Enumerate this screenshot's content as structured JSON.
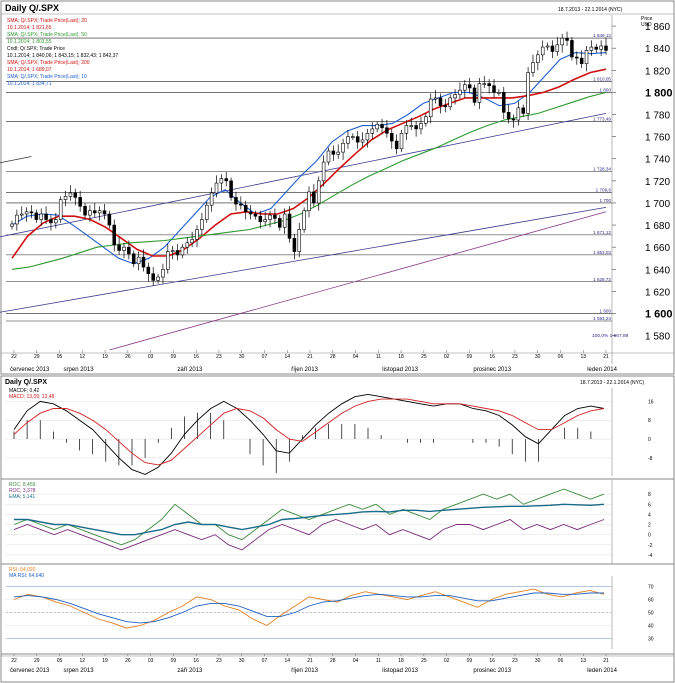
{
  "panel_title": "Daily Q/.SPX",
  "panel_date_range": "18.7.2013 - 22.1.2014 (NYC)",
  "osc_date_range": "18.7.2013 - 22.1.2014 (NYC)",
  "price_unit": "Price\nUSD",
  "value_unit": "Value\nUSD",
  "colors": {
    "candle": "#000000",
    "sma20": "#1f5fd0",
    "sma50": "#2e9a2e",
    "sma200": "#d01010",
    "trend_blue": "#3a3a8c",
    "trend_purple": "#8a3a8a",
    "macd": "#000000",
    "macd_signal": "#d02020",
    "roc": "#3a8a3a",
    "roc2": "#7a2a7a",
    "ema": "#1a6a8a",
    "rsi": "#e08020",
    "rsi_ma": "#2060c0"
  },
  "legend_main": {
    "sma20": "SMA; Q/.SPX; Trade Price(Last); 20",
    "sma20_val": "10.1.2014; 1 821,65",
    "sma50": "SMA; Q/.SPX; Trade Price(Last); 50",
    "sma50_val": "10.1.2014; 1 803,55",
    "ohlc": "Cndl; Q/.SPX; Trade Price",
    "ohlc_val": "10.1.2014; 1 840,06; 1 843,15; 1 832,43; 1 842,37",
    "sma200": "SMA; Q/.SPX; Trade Price(Last); 200",
    "sma200_val": "10.1.2014; 1 689,07",
    "sma10": "SMA; Q/.SPX; Trade Price(Last); 10",
    "sma10_val": "10.1.2014; 1 834,71"
  },
  "legend_macd": {
    "macd": "MACDF; 0,42",
    "signal": "MACD; 13,09; 13,48"
  },
  "legend_roc": {
    "roc": "ROC; 8,459",
    "roc2": "ROC; 3,378",
    "ema": "EMA; 5,141"
  },
  "legend_rsi": {
    "rsi": "RSI; 64,020",
    "rsi_ma": "MA RSI; 64,640"
  },
  "hlines": [
    {
      "value": 1849.12,
      "label": "1 849,12"
    },
    {
      "value": 1810.05,
      "label": "1 810,05"
    },
    {
      "value": 1800,
      "label": "1 800"
    },
    {
      "value": 1773.49,
      "label": "1 773,49"
    },
    {
      "value": 1728.34,
      "label": "1 728,34"
    },
    {
      "value": 1709.6,
      "label": "1 709,6"
    },
    {
      "value": 1700,
      "label": "1 700"
    },
    {
      "value": 1671.12,
      "label": "1 671,12"
    },
    {
      "value": 1653.03,
      "label": "1 653,03"
    },
    {
      "value": 1628.72,
      "label": "1 628,72"
    },
    {
      "value": 1600,
      "label": "1 600"
    },
    {
      "value": 1593.24,
      "label": "1 593,24"
    }
  ],
  "fib_label": "100,0%  1 567,89",
  "price_ticks": [
    "1 860",
    "1 840",
    "1 820",
    "1 800",
    "1 780",
    "1 760",
    "1 740",
    "1 720",
    "1 700",
    "1 680",
    "1 660",
    "1 640",
    "1 620",
    "1 600",
    "1 580"
  ],
  "macd_ticks": [
    "16",
    "8",
    "0",
    "-8"
  ],
  "roc_ticks": [
    "8",
    "6",
    "4",
    "2",
    "0",
    "-2",
    "-4"
  ],
  "rsi_ticks": [
    "70",
    "60",
    "50",
    "40",
    "30"
  ],
  "date_ticks": [
    "22",
    "29",
    "05",
    "12",
    "19",
    "26",
    "03",
    "09",
    "16",
    "23",
    "30",
    "07",
    "14",
    "21",
    "28",
    "04",
    "11",
    "18",
    "25",
    "02",
    "09",
    "16",
    "23",
    "30",
    "06",
    "13",
    "21"
  ],
  "month_labels": [
    "červenec 2013",
    "srpen 2013",
    "září 2013",
    "říjen 2013",
    "listopad 2013",
    "prosinec 2013",
    "leden 2014"
  ],
  "chart_data": [
    {
      "type": "candlestick",
      "title": "Daily Q/.SPX",
      "ylabel": "Price USD",
      "ylim": [
        1567,
        1870
      ],
      "x_range": [
        "2013-07-18",
        "2014-01-22"
      ],
      "series": [
        {
          "name": "Q/.SPX close",
          "values": [
            1681,
            1689,
            1690,
            1692,
            1691,
            1685,
            1690,
            1685,
            1682,
            1685,
            1703,
            1706,
            1709,
            1705,
            1697,
            1689,
            1693,
            1691,
            1693,
            1690,
            1680,
            1662,
            1657,
            1660,
            1654,
            1645,
            1651,
            1642,
            1636,
            1630,
            1633,
            1640,
            1656,
            1657,
            1653,
            1660,
            1664,
            1667,
            1676,
            1685,
            1698,
            1709,
            1718,
            1722,
            1720,
            1705,
            1699,
            1698,
            1692,
            1690,
            1688,
            1683,
            1685,
            1689,
            1686,
            1678,
            1690,
            1668,
            1656,
            1676,
            1693,
            1710,
            1700,
            1720,
            1737,
            1747,
            1744,
            1746,
            1754,
            1760,
            1760,
            1755,
            1757,
            1763,
            1767,
            1771,
            1768,
            1763,
            1756,
            1749,
            1763,
            1770,
            1770,
            1767,
            1772,
            1778,
            1794,
            1795,
            1788,
            1787,
            1795,
            1798,
            1802,
            1807,
            1804,
            1791,
            1808,
            1808,
            1806,
            1800,
            1800,
            1782,
            1776,
            1775,
            1786,
            1781,
            1818,
            1827,
            1834,
            1841,
            1842,
            1837,
            1843,
            1849,
            1847,
            1832,
            1831,
            1826,
            1838,
            1841,
            1839,
            1842,
            1838
          ]
        },
        {
          "name": "SMA 10",
          "values": [
            1680,
            1688,
            1690,
            1689,
            1680,
            1670,
            1660,
            1650,
            1645,
            1650,
            1660,
            1675,
            1690,
            1705,
            1712,
            1700,
            1690,
            1695,
            1710,
            1725,
            1738,
            1755,
            1765,
            1770,
            1770,
            1772,
            1780,
            1790,
            1795,
            1800,
            1800,
            1795,
            1788,
            1790,
            1800,
            1815,
            1830,
            1836,
            1835,
            1836
          ]
        },
        {
          "name": "SMA 20",
          "values": [
            1650,
            1670,
            1682,
            1688,
            1688,
            1685,
            1678,
            1668,
            1658,
            1652,
            1652,
            1658,
            1668,
            1680,
            1690,
            1692,
            1690,
            1690,
            1695,
            1705,
            1718,
            1732,
            1745,
            1757,
            1766,
            1772,
            1778,
            1785,
            1790,
            1795,
            1795,
            1795,
            1795,
            1797,
            1800,
            1805,
            1812,
            1818,
            1821
          ]
        },
        {
          "name": "SMA 50",
          "values": [
            1640,
            1642,
            1646,
            1650,
            1655,
            1660,
            1662,
            1664,
            1665,
            1666,
            1668,
            1670,
            1672,
            1674,
            1676,
            1680,
            1684,
            1690,
            1698,
            1707,
            1716,
            1724,
            1731,
            1738,
            1744,
            1750,
            1757,
            1764,
            1770,
            1775,
            1778,
            1781,
            1786,
            1791,
            1796,
            1800
          ]
        }
      ]
    },
    {
      "type": "line",
      "title": "MACD",
      "series": [
        {
          "name": "MACDF",
          "values": [
            4,
            12,
            16,
            15,
            12,
            8,
            4,
            -2,
            -8,
            -13,
            -15,
            -12,
            -6,
            2,
            8,
            13,
            16,
            13,
            8,
            2,
            -5,
            -6,
            0,
            6,
            11,
            15,
            18,
            19,
            18,
            17,
            16,
            15,
            14,
            15,
            15,
            13,
            12,
            10,
            6,
            1,
            -2,
            4,
            10,
            13,
            14,
            13
          ]
        },
        {
          "name": "MACD signal",
          "values": [
            2,
            7,
            11,
            13,
            13,
            11,
            8,
            4,
            -1,
            -6,
            -10,
            -11,
            -9,
            -4,
            1,
            6,
            11,
            13,
            12,
            9,
            4,
            0,
            -1,
            3,
            7,
            11,
            14,
            16,
            17,
            17,
            17,
            16,
            15,
            15,
            15,
            14,
            13,
            12,
            10,
            7,
            4,
            4,
            7,
            10,
            12,
            13
          ]
        }
      ]
    },
    {
      "type": "line",
      "title": "ROC",
      "series": [
        {
          "name": "ROC 8,459",
          "values": [
            2,
            3,
            2,
            1,
            2,
            1,
            0,
            -1,
            -2,
            -1,
            1,
            3,
            6,
            4,
            2,
            2,
            0,
            -1,
            1,
            3,
            5,
            4,
            3,
            4,
            5,
            6,
            5,
            6,
            4,
            5,
            4,
            3,
            5,
            6,
            7,
            8,
            7,
            8,
            6,
            7,
            8,
            9,
            8,
            7,
            8
          ]
        },
        {
          "name": "ROC 3,378",
          "values": [
            1,
            2,
            1,
            0,
            1,
            0,
            -1,
            -2,
            -3,
            -2,
            -1,
            0,
            1,
            0,
            -1,
            0,
            -2,
            -3,
            -1,
            1,
            2,
            1,
            0,
            2,
            3,
            2,
            1,
            2,
            0,
            1,
            0,
            -1,
            1,
            2,
            2,
            1,
            2,
            3,
            1,
            2,
            1,
            2,
            1,
            2,
            3
          ]
        },
        {
          "name": "EMA",
          "values": [
            3,
            3,
            2.5,
            2,
            2,
            1.5,
            1,
            0.5,
            0,
            0,
            0.5,
            1,
            2,
            2.5,
            2,
            2,
            1.5,
            1,
            1.5,
            2,
            3,
            3.2,
            3.5,
            3.8,
            4,
            4.2,
            4.5,
            4.6,
            4.5,
            4.8,
            4.8,
            4.6,
            4.8,
            5,
            5.2,
            5.4,
            5.5,
            5.6,
            5.6,
            5.7,
            5.8,
            6,
            5.9,
            5.8,
            6
          ]
        }
      ]
    },
    {
      "type": "line",
      "title": "RSI",
      "series": [
        {
          "name": "RSI",
          "values": [
            60,
            64,
            62,
            58,
            55,
            50,
            45,
            42,
            38,
            40,
            44,
            50,
            55,
            62,
            60,
            55,
            52,
            45,
            40,
            48,
            55,
            62,
            60,
            58,
            63,
            66,
            64,
            62,
            60,
            63,
            66,
            62,
            58,
            54,
            60,
            64,
            66,
            68,
            64,
            62,
            65,
            67,
            64
          ]
        },
        {
          "name": "MA RSI",
          "values": [
            62,
            63,
            62,
            60,
            57,
            53,
            49,
            46,
            43,
            42,
            43,
            46,
            50,
            55,
            57,
            57,
            55,
            51,
            47,
            47,
            50,
            55,
            58,
            59,
            61,
            63,
            64,
            63,
            62,
            62,
            63,
            63,
            61,
            59,
            59,
            61,
            63,
            65,
            65,
            64,
            64,
            65,
            65
          ]
        }
      ]
    }
  ]
}
